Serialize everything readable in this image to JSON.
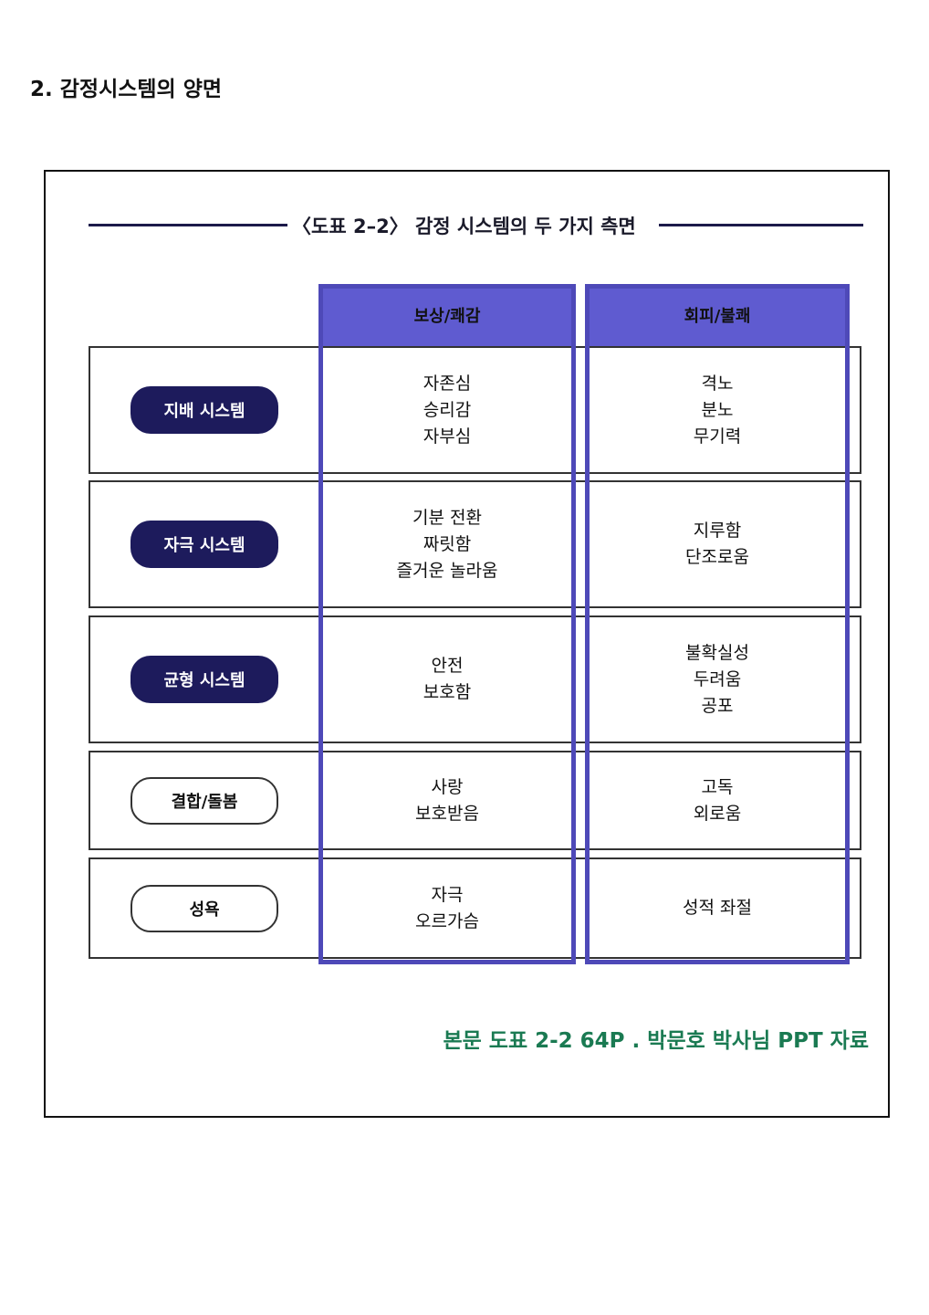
{
  "heading": "2. 감정시스템의 양면",
  "figure": {
    "title": "〈도표 2–2〉 감정 시스템의 두 가지 측면",
    "columns": [
      "보상/쾌감",
      "회피/불쾌"
    ],
    "rows": [
      {
        "label": "지배 시스템",
        "style": "dark",
        "reward": [
          "자존심",
          "승리감",
          "자부심"
        ],
        "avoid": [
          "격노",
          "분노",
          "무기력"
        ]
      },
      {
        "label": "자극 시스템",
        "style": "dark",
        "reward": [
          "기분 전환",
          "짜릿함",
          "즐거운 놀라움"
        ],
        "avoid": [
          "지루함",
          "단조로움"
        ]
      },
      {
        "label": "균형 시스템",
        "style": "dark",
        "reward": [
          "안전",
          "보호함"
        ],
        "avoid": [
          "불확실성",
          "두려움",
          "공포"
        ]
      },
      {
        "label": "결합/돌봄",
        "style": "light",
        "reward": [
          "사랑",
          "보호받음"
        ],
        "avoid": [
          "고독",
          "외로움"
        ]
      },
      {
        "label": "성욕",
        "style": "light",
        "reward": [
          "자극",
          "오르가슴"
        ],
        "avoid": [
          "성적 좌절"
        ]
      }
    ],
    "colors": {
      "header": "#5f5bd0",
      "pill_dark": "#1d1b5c",
      "caption": "#1a7a52"
    }
  },
  "caption": "본문 도표 2-2 64P . 박문호 박사님 PPT 자료"
}
